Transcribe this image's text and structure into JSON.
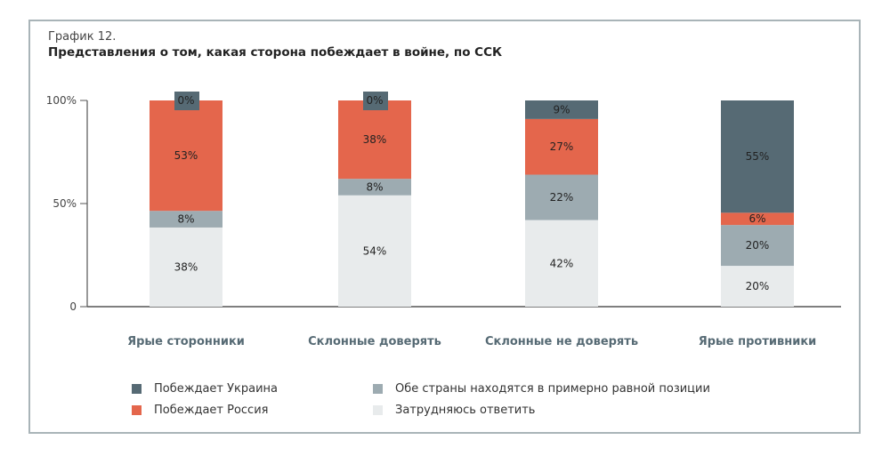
{
  "subtitle": "График 12.",
  "title": "Представления о том, какая сторона побеждает в войне, по ССК",
  "chart_data": {
    "type": "bar",
    "stacked": true,
    "title": "Представления о том, какая сторона побеждает в войне, по ССК",
    "categories": [
      "Ярые сторонники",
      "Склонные доверять",
      "Склонные не доверять",
      "Ярые противники"
    ],
    "yticks": [
      "0",
      "50%",
      "100%"
    ],
    "ylim": [
      0,
      100
    ],
    "grid": false,
    "legend_position": "bottom",
    "series": [
      {
        "name": "Затрудняюсь ответить",
        "color": "#e8ebec",
        "values": [
          38,
          54,
          42,
          20
        ]
      },
      {
        "name": "Обе страны находятся в примерно равной позиции",
        "color": "#9dabb1",
        "values": [
          8,
          8,
          22,
          20
        ]
      },
      {
        "name": "Побеждает Россия",
        "color": "#e4664c",
        "values": [
          53,
          38,
          27,
          6
        ]
      },
      {
        "name": "Побеждает Украина",
        "color": "#566a74",
        "values": [
          0,
          0,
          9,
          55
        ]
      }
    ]
  }
}
